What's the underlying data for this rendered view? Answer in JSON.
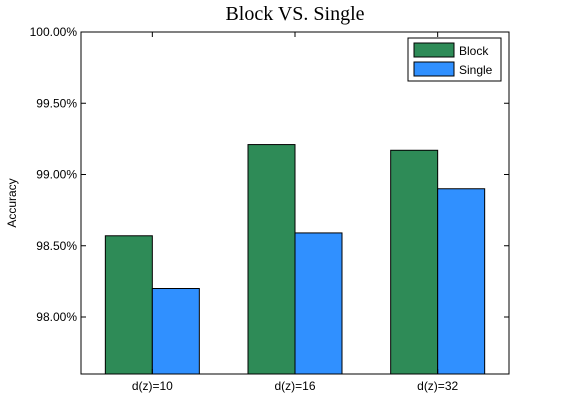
{
  "chart_data": {
    "type": "bar",
    "title": "Block VS. Single",
    "xlabel": "",
    "ylabel": "Accuracy",
    "categories": [
      "d(z)=10",
      "d(z)=16",
      "d(z)=32"
    ],
    "series": [
      {
        "name": "Block",
        "values": [
          98.57,
          99.21,
          99.17
        ],
        "color": "#2e8b57"
      },
      {
        "name": "Single",
        "values": [
          98.2,
          98.59,
          98.9
        ],
        "color": "#3090ff"
      }
    ],
    "ylim": [
      97.6,
      100.0
    ],
    "yticks": [
      98.0,
      98.5,
      99.0,
      99.5,
      100.0
    ],
    "ytick_labels": [
      "98.00%",
      "98.50%",
      "99.00%",
      "99.50%",
      "100.00%"
    ],
    "grid": false,
    "legend_position": "top-right"
  }
}
